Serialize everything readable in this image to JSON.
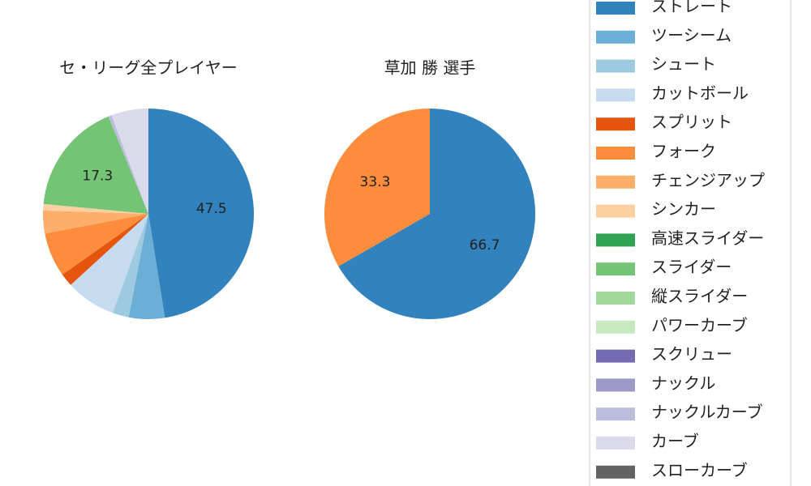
{
  "chart_data": [
    {
      "type": "pie",
      "title": "セ・リーグ全プレイヤー",
      "categories": [
        "ストレート",
        "ツーシーム",
        "シュート",
        "カットボール",
        "スプリット",
        "フォーク",
        "チェンジアップ",
        "シンカー",
        "高速スライダー",
        "スライダー",
        "縦スライダー",
        "パワーカーブ",
        "スクリュー",
        "ナックル",
        "ナックルカーブ",
        "カーブ",
        "スローカーブ"
      ],
      "values": [
        47.5,
        5.5,
        2.5,
        7.7,
        2.0,
        6.8,
        3.5,
        1.0,
        0,
        17.3,
        0,
        0,
        0,
        0,
        0.5,
        5.7,
        0
      ],
      "colors": [
        "#3182bd",
        "#6baed6",
        "#9ecae1",
        "#c6dbef",
        "#e6550d",
        "#fd8d3c",
        "#fdae6b",
        "#fdd0a2",
        "#31a354",
        "#74c476",
        "#a1d99b",
        "#c7e9c0",
        "#756bb1",
        "#9e9ac8",
        "#bcbddc",
        "#dadaeb",
        "#636363"
      ],
      "legend": true
    },
    {
      "type": "pie",
      "title": "草加 勝  選手",
      "categories": [
        "ストレート",
        "フォーク"
      ],
      "values": [
        66.7,
        33.3
      ],
      "colors": [
        "#3182bd",
        "#fd8d3c"
      ]
    }
  ]
}
